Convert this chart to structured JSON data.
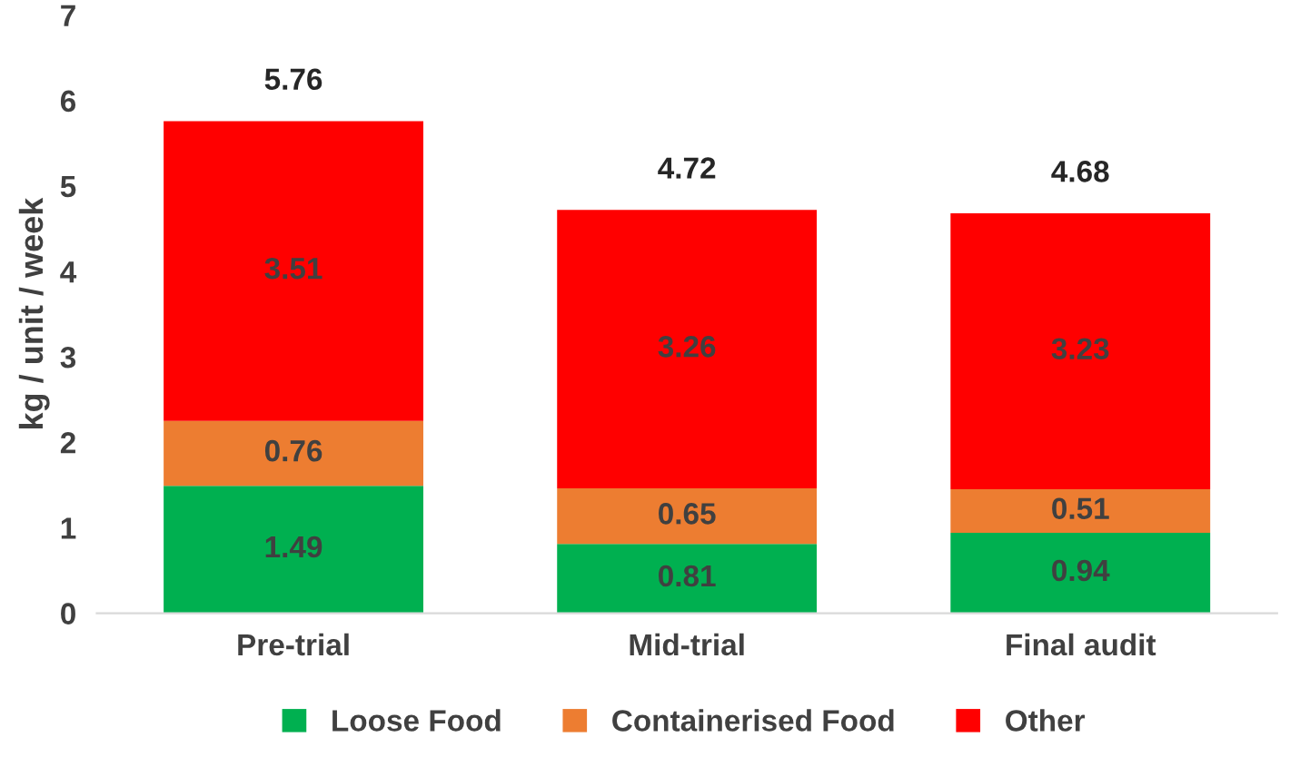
{
  "chart_data": {
    "type": "bar",
    "stacked": true,
    "ylabel": "kg / unit / week",
    "categories": [
      "Pre-trial",
      "Mid-trial",
      "Final audit"
    ],
    "series": [
      {
        "name": "Loose Food",
        "color": "#00b050",
        "values": [
          1.49,
          0.81,
          0.94
        ]
      },
      {
        "name": "Containerised Food",
        "color": "#ed7d31",
        "values": [
          0.76,
          0.65,
          0.51
        ]
      },
      {
        "name": "Other",
        "color": "#ff0000",
        "values": [
          3.51,
          3.26,
          3.23
        ]
      }
    ],
    "totals": [
      "5.76",
      "4.72",
      "4.68"
    ],
    "data_labels": true,
    "ylim": [
      0,
      7
    ],
    "yticks": [
      0,
      1,
      2,
      3,
      4,
      5,
      6,
      7
    ],
    "grid": false,
    "legend": "bottom"
  }
}
